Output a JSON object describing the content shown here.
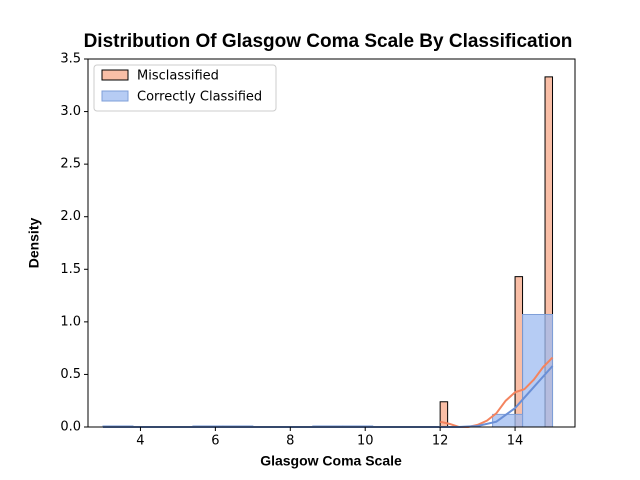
{
  "chart_data": {
    "type": "histogram",
    "title": "Distribution Of Glasgow Coma Scale By Classification",
    "x_label": "Glasgow Coma Scale",
    "y_label": "Density",
    "xlim": [
      2.6,
      15.6
    ],
    "ylim": [
      0,
      3.5
    ],
    "xticks": [
      4,
      6,
      8,
      10,
      12,
      14
    ],
    "yticks": [
      {
        "value": 0,
        "label": "0.0"
      },
      {
        "value": 0.5,
        "label": "0.5"
      },
      {
        "value": 1,
        "label": "1.0"
      },
      {
        "value": 1.5,
        "label": "1.5"
      },
      {
        "value": 2,
        "label": "2.0"
      },
      {
        "value": 2.5,
        "label": "2.5"
      },
      {
        "value": 3,
        "label": "3.0"
      },
      {
        "value": 3.5,
        "label": "3.5"
      }
    ],
    "legend": "upper left",
    "series": [
      {
        "name": "Misclassified",
        "color": "#f7a888",
        "edgecolor": "#000000",
        "line_color": "#f4845f",
        "bins": [
          12,
          12.2,
          12.4,
          12.6,
          12.8,
          13,
          13.2,
          13.4,
          13.6,
          13.8,
          14,
          14.2,
          14.4,
          14.6,
          14.8,
          15
        ],
        "values": [
          0.24,
          0,
          0,
          0,
          0,
          0,
          0,
          0,
          0,
          0,
          1.43,
          0,
          0,
          0,
          3.33
        ],
        "kde": {
          "x": [
            12,
            12.25,
            12.5,
            12.75,
            13,
            13.25,
            13.5,
            13.75,
            14,
            14.25,
            14.5,
            14.75,
            15
          ],
          "values": [
            0.05,
            0.03,
            0.0,
            0.0,
            0.02,
            0.06,
            0.13,
            0.25,
            0.33,
            0.36,
            0.45,
            0.57,
            0.66
          ]
        }
      },
      {
        "name": "Correctly Classified",
        "color": "#9dbbf0",
        "edgecolor": "#7f9fd8",
        "line_color": "#6a8fd6",
        "bins": [
          3,
          3.8,
          4.6,
          5.4,
          6.2,
          7,
          7.8,
          8.6,
          9.4,
          10.2,
          11,
          11.8,
          12.6,
          13.4,
          14.2,
          15
        ],
        "values": [
          0.01,
          0,
          0,
          0.01,
          0.01,
          0,
          0,
          0.01,
          0.01,
          0,
          0,
          0,
          0,
          0.12,
          1.07
        ],
        "kde": {
          "x": [
            3,
            5,
            7,
            9,
            11,
            12,
            12.5,
            13,
            13.5,
            14,
            14.5,
            15
          ],
          "values": [
            0.0,
            0.0,
            0.0,
            0.0,
            0.0,
            0.0,
            0.0,
            0.01,
            0.05,
            0.18,
            0.38,
            0.58
          ]
        }
      }
    ]
  }
}
